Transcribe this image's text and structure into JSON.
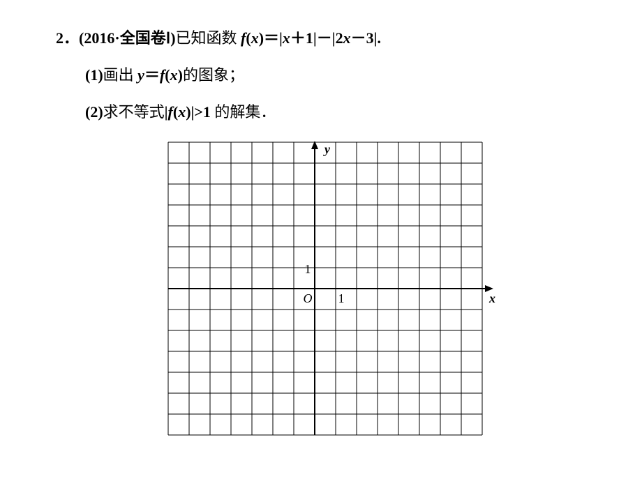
{
  "problem": {
    "number": "2",
    "source_prefix": "(2016·",
    "source_body": "全国卷Ⅰ",
    "source_suffix": ")",
    "stem_cn1": "已知函数 ",
    "fname": "f",
    "arg_open": "(",
    "var": "x",
    "arg_close": ")",
    "eq": "＝",
    "abs1_open": "|",
    "term1_a": "x",
    "plus": "＋",
    "term1_b": "1",
    "abs1_close": "|",
    "minus": "－",
    "abs2_open": "|",
    "term2_coef": "2",
    "term2_var": "x",
    "term2_minus": "－",
    "term2_b": "3",
    "abs2_close": "|",
    "stem_end": "."
  },
  "q1": {
    "label": "(1)",
    "text1": "画出 ",
    "y": "y",
    "eq": "＝",
    "f": "f",
    "open": "(",
    "x": "x",
    "close": ")",
    "text2": "的图象；"
  },
  "q2": {
    "label": "(2)",
    "text1": "求不等式",
    "abs_o": "|",
    "f": "f",
    "open": "(",
    "x": "x",
    "close": ")",
    "abs_c": "|",
    "gt": ">",
    "one": "1",
    "text2": " 的解集．"
  },
  "grid": {
    "rows": 14,
    "cols": 15,
    "cell": 30,
    "origin_col": 7,
    "origin_row": 7,
    "line_color": "#000000",
    "line_width": 1,
    "axis_width": 2,
    "label_y": "y",
    "label_x": "x",
    "label_O": "O",
    "tick_one": "1",
    "label_fontsize": 18
  }
}
